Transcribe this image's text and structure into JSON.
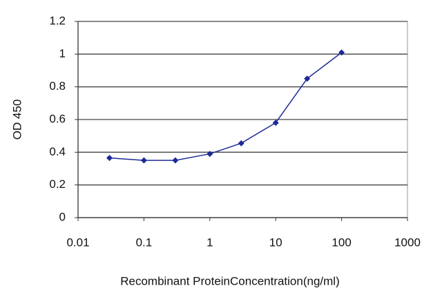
{
  "chart_data": {
    "type": "line",
    "xlabel": "Recombinant ProteinConcentration(ng/ml)",
    "ylabel": "OD 450",
    "x": [
      0.03,
      0.1,
      0.3,
      1,
      3,
      10,
      30,
      100
    ],
    "series": [
      {
        "color": "#1c2a96",
        "values": [
          0.365,
          0.35,
          0.35,
          0.39,
          0.455,
          0.58,
          0.85,
          1.01
        ]
      }
    ],
    "xscale": "log",
    "xlim": [
      0.01,
      1000
    ],
    "xticks": [
      0.01,
      0.1,
      1,
      10,
      100,
      1000
    ],
    "ylim": [
      0,
      1.2
    ],
    "yticks": [
      0,
      0.2,
      0.4,
      0.6,
      0.8,
      1,
      1.2
    ],
    "grid": true
  }
}
